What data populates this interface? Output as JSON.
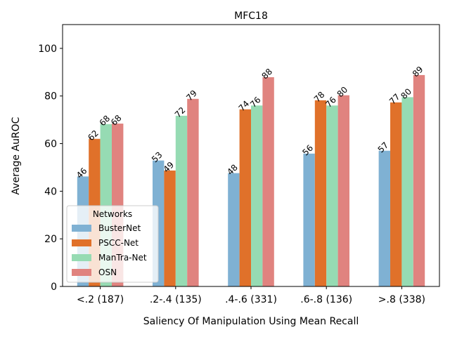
{
  "chart_data": {
    "type": "bar",
    "title": "MFC18",
    "xlabel": "Saliency Of Manipulation Using Mean Recall",
    "ylabel": "Average AuROC",
    "ylim": [
      0,
      110
    ],
    "yticks": [
      0,
      20,
      40,
      60,
      80,
      100
    ],
    "grid": false,
    "categories": [
      "<.2 (187)",
      ".2-.4 (135)",
      ".4-.6 (331)",
      ".6-.8 (136)",
      ">.8 (338)"
    ],
    "series": [
      {
        "name": "BusterNet",
        "color": "#7fb1d3",
        "values": [
          46.2,
          52.9,
          47.6,
          55.8,
          57.0
        ],
        "labels": [
          "46",
          "53",
          "48",
          "56",
          "57"
        ]
      },
      {
        "name": "PSCC-Net",
        "color": "#e0712a",
        "values": [
          62.0,
          48.7,
          74.4,
          78.2,
          77.3
        ],
        "labels": [
          "62",
          "49",
          "74",
          "78",
          "77"
        ]
      },
      {
        "name": "ManTra-Net",
        "color": "#96dbb3",
        "values": [
          68.2,
          71.7,
          76.0,
          76.0,
          79.5
        ],
        "labels": [
          "68",
          "72",
          "76",
          "76",
          "80"
        ]
      },
      {
        "name": "OSN",
        "color": "#e0837f",
        "values": [
          68.4,
          78.8,
          87.9,
          80.3,
          88.8
        ],
        "labels": [
          "68",
          "79",
          "88",
          "80",
          "89"
        ]
      }
    ],
    "legend": {
      "title": "Networks",
      "placement": "lower-left"
    }
  }
}
